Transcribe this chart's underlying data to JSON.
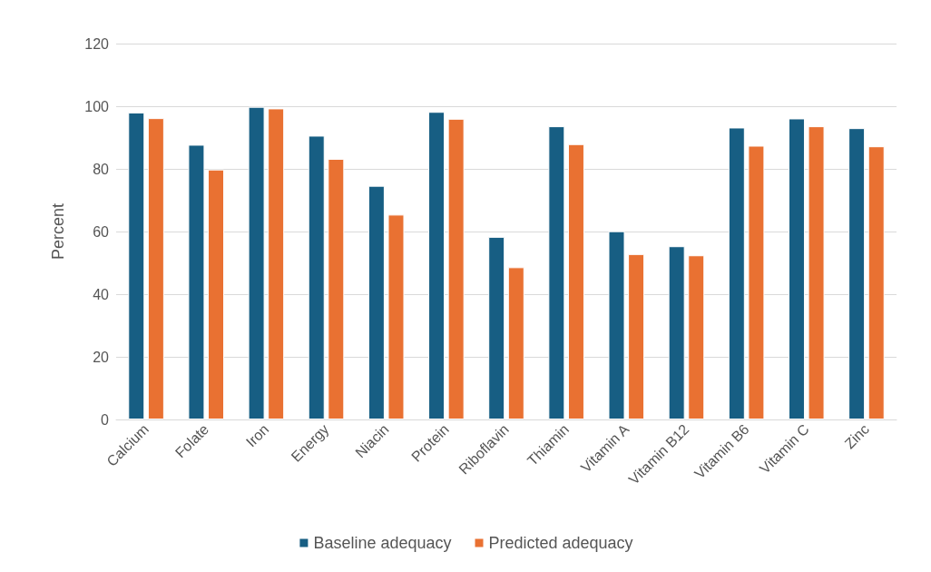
{
  "chart_data": {
    "type": "bar",
    "ylabel": "Percent",
    "categories": [
      "Calcium",
      "Folate",
      "Iron",
      "Energy",
      "Niacin",
      "Protein",
      "Riboflavin",
      "Thiamin",
      "Vitamin A",
      "Vitamin B12",
      "Vitamin B6",
      "Vitamin C",
      "Zinc"
    ],
    "series": [
      {
        "name": "Baseline adequacy",
        "color": "#175e83",
        "values": [
          98.0,
          87.7,
          99.8,
          90.6,
          74.6,
          98.2,
          58.3,
          93.6,
          60.1,
          55.3,
          93.2,
          96.1,
          93.0
        ]
      },
      {
        "name": "Predicted adequacy",
        "color": "#e97132",
        "values": [
          96.2,
          79.8,
          99.3,
          83.2,
          65.4,
          96.0,
          48.6,
          87.9,
          52.8,
          52.4,
          87.4,
          93.6,
          87.2
        ]
      }
    ],
    "ylim": [
      0,
      120
    ],
    "yticks": [
      0,
      20,
      40,
      60,
      80,
      100,
      120
    ],
    "grid": "y",
    "legend": "bottom"
  }
}
